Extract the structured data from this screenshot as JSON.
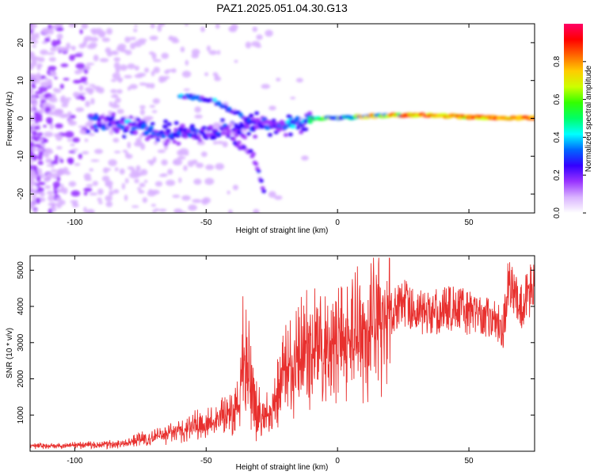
{
  "figure": {
    "title": "PAZ1.2025.051.04.30.G13"
  },
  "chart_data": [
    {
      "type": "heatmap",
      "title": "PAZ1.2025.051.04.30.G13",
      "xlabel": "Height of straight line (km)",
      "ylabel": "Frequency (Hz)",
      "xlim": [
        -117,
        75
      ],
      "ylim": [
        -25,
        25
      ],
      "x_ticks": [
        -100,
        -50,
        0,
        50
      ],
      "y_ticks": [
        -20,
        -10,
        0,
        10,
        20
      ],
      "colorbar": {
        "label": "Normalized spectral amplitude",
        "range": [
          0,
          1
        ],
        "ticks": [
          0.0,
          0.2,
          0.4,
          0.6,
          0.8
        ],
        "colormap": [
          "#ffffff",
          "#d9b3ff",
          "#9933ff",
          "#3300ff",
          "#0066ff",
          "#00ffff",
          "#00ff66",
          "#33ff00",
          "#ccff00",
          "#ffcc00",
          "#ff6600",
          "#ff0000",
          "#ff0066"
        ]
      },
      "ridge": {
        "description_points_x": [
          -90,
          -80,
          -70,
          -60,
          -50,
          -40,
          -30,
          -20,
          -10,
          0,
          10,
          20,
          30,
          40,
          50,
          60,
          70,
          75
        ],
        "frequency": [
          -1,
          -2,
          -4,
          -3,
          -4,
          -3,
          -1.5,
          -2,
          0,
          0,
          0.5,
          0.8,
          0.8,
          0.7,
          0.3,
          0.2,
          0.1,
          0.1
        ],
        "amplitude": [
          0.3,
          0.35,
          0.3,
          0.3,
          0.3,
          0.25,
          0.3,
          0.35,
          0.5,
          0.6,
          0.7,
          0.75,
          0.85,
          0.85,
          0.8,
          0.85,
          0.85,
          0.85
        ]
      },
      "upper_branch": {
        "x": [
          -60,
          -50,
          -45,
          -40,
          -35,
          -30
        ],
        "frequency": [
          6,
          5,
          4,
          2,
          0,
          -1
        ]
      },
      "lower_branch": {
        "x": [
          -40,
          -35,
          -32,
          -30,
          -28
        ],
        "frequency": [
          -6,
          -8,
          -10,
          -14,
          -19
        ]
      }
    },
    {
      "type": "line",
      "xlabel": "Height of straight line (km)",
      "ylabel": "SNR (10 * v/v)",
      "xlim": [
        -117,
        75
      ],
      "ylim": [
        0,
        5400
      ],
      "x_ticks": [
        -100,
        -50,
        0,
        50
      ],
      "y_ticks": [
        1000,
        2000,
        3000,
        4000,
        5000
      ],
      "color": "#e8302e",
      "series": [
        {
          "x": [
            -117,
            -110,
            -100,
            -90,
            -80,
            -75,
            -70,
            -60,
            -55,
            -50,
            -45,
            -40,
            -37,
            -35,
            -33,
            -30,
            -25,
            -22,
            -20,
            -18,
            -15,
            -10,
            -5,
            0,
            5,
            10,
            15,
            20,
            25,
            30,
            35,
            40,
            45,
            50,
            55,
            60,
            63,
            65,
            68,
            70,
            73,
            75
          ],
          "y": [
            150,
            140,
            160,
            180,
            220,
            350,
            380,
            550,
            700,
            750,
            900,
            1100,
            1500,
            3200,
            1600,
            1000,
            1200,
            1800,
            2200,
            2500,
            2600,
            2800,
            2900,
            2800,
            3000,
            3200,
            3500,
            3800,
            4100,
            3900,
            3800,
            3900,
            4000,
            3800,
            3700,
            3600,
            3400,
            4600,
            4200,
            4000,
            4400,
            4800
          ]
        }
      ]
    }
  ]
}
